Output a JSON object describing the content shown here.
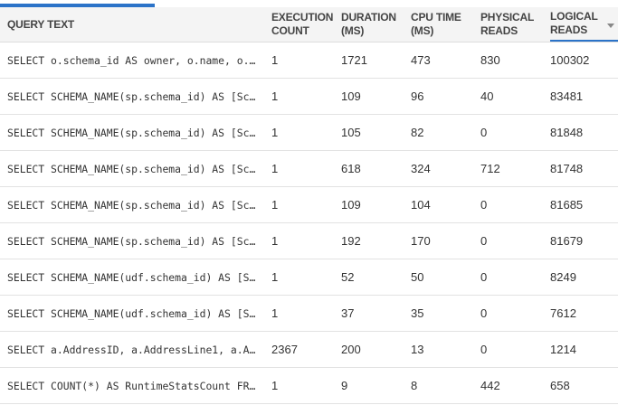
{
  "progress": {
    "fraction": 0.25
  },
  "columns": [
    {
      "label": "QUERY TEXT"
    },
    {
      "label": "EXECUTION COUNT"
    },
    {
      "label": "DURATION (MS)"
    },
    {
      "label": "CPU TIME (MS)"
    },
    {
      "label": "PHYSICAL READS"
    },
    {
      "label": "LOGICAL READS",
      "sorted": "descending"
    }
  ],
  "rows": [
    {
      "query": "SELECT o.schema_id AS owner, o.name, o.…",
      "exec": "1",
      "duration": "1721",
      "cpu": "473",
      "physical": "830",
      "logical": "100302"
    },
    {
      "query": "SELECT SCHEMA_NAME(sp.schema_id) AS [Sc…",
      "exec": "1",
      "duration": "109",
      "cpu": "96",
      "physical": "40",
      "logical": "83481"
    },
    {
      "query": "SELECT SCHEMA_NAME(sp.schema_id) AS [Sc…",
      "exec": "1",
      "duration": "105",
      "cpu": "82",
      "physical": "0",
      "logical": "81848"
    },
    {
      "query": "SELECT SCHEMA_NAME(sp.schema_id) AS [Sc…",
      "exec": "1",
      "duration": "618",
      "cpu": "324",
      "physical": "712",
      "logical": "81748"
    },
    {
      "query": "SELECT SCHEMA_NAME(sp.schema_id) AS [Sc…",
      "exec": "1",
      "duration": "109",
      "cpu": "104",
      "physical": "0",
      "logical": "81685"
    },
    {
      "query": "SELECT SCHEMA_NAME(sp.schema_id) AS [Sc…",
      "exec": "1",
      "duration": "192",
      "cpu": "170",
      "physical": "0",
      "logical": "81679"
    },
    {
      "query": "SELECT SCHEMA_NAME(udf.schema_id) AS [S…",
      "exec": "1",
      "duration": "52",
      "cpu": "50",
      "physical": "0",
      "logical": "8249"
    },
    {
      "query": "SELECT SCHEMA_NAME(udf.schema_id) AS [S…",
      "exec": "1",
      "duration": "37",
      "cpu": "35",
      "physical": "0",
      "logical": "7612"
    },
    {
      "query": "SELECT a.AddressID, a.AddressLine1, a.A…",
      "exec": "2367",
      "duration": "200",
      "cpu": "13",
      "physical": "0",
      "logical": "1214"
    },
    {
      "query": "SELECT COUNT(*) AS RuntimeStatsCount FR…",
      "exec": "1",
      "duration": "9",
      "cpu": "8",
      "physical": "442",
      "logical": "658"
    }
  ]
}
